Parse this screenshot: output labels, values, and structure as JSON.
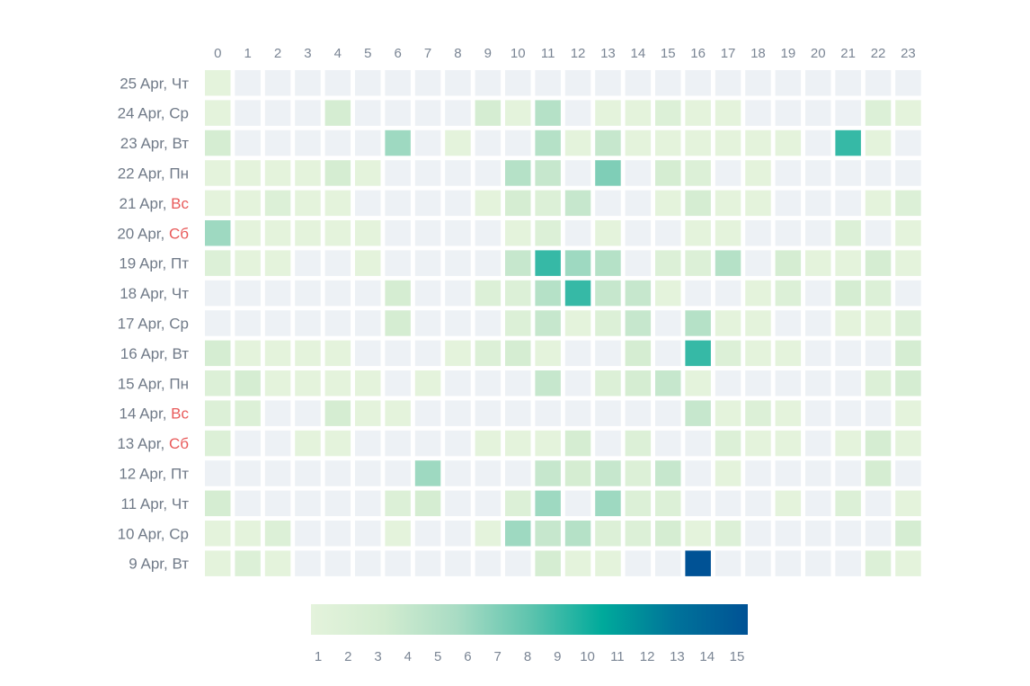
{
  "chart_data": {
    "type": "heatmap",
    "title": "",
    "xlabel": "",
    "ylabel": "",
    "x": [
      "0",
      "1",
      "2",
      "3",
      "4",
      "5",
      "6",
      "7",
      "8",
      "9",
      "10",
      "11",
      "12",
      "13",
      "14",
      "15",
      "16",
      "17",
      "18",
      "19",
      "20",
      "21",
      "22",
      "23"
    ],
    "rows": [
      {
        "date": "25 Apr,",
        "day": "Чт",
        "weekend": false
      },
      {
        "date": "24 Apr,",
        "day": "Ср",
        "weekend": false
      },
      {
        "date": "23 Apr,",
        "day": "Вт",
        "weekend": false
      },
      {
        "date": "22 Apr,",
        "day": "Пн",
        "weekend": false
      },
      {
        "date": "21 Apr,",
        "day": "Вс",
        "weekend": true
      },
      {
        "date": "20 Apr,",
        "day": "Сб",
        "weekend": true
      },
      {
        "date": "19 Apr,",
        "day": "Пт",
        "weekend": false
      },
      {
        "date": "18 Apr,",
        "day": "Чт",
        "weekend": false
      },
      {
        "date": "17 Apr,",
        "day": "Ср",
        "weekend": false
      },
      {
        "date": "16 Apr,",
        "day": "Вт",
        "weekend": false
      },
      {
        "date": "15 Apr,",
        "day": "Пн",
        "weekend": false
      },
      {
        "date": "14 Apr,",
        "day": "Вс",
        "weekend": true
      },
      {
        "date": "13 Apr,",
        "day": "Сб",
        "weekend": true
      },
      {
        "date": "12 Apr,",
        "day": "Пт",
        "weekend": false
      },
      {
        "date": "11 Apr,",
        "day": "Чт",
        "weekend": false
      },
      {
        "date": "10 Apr,",
        "day": "Ср",
        "weekend": false
      },
      {
        "date": "9 Apr,",
        "day": "Вт",
        "weekend": false
      }
    ],
    "values": [
      [
        1,
        0,
        0,
        0,
        0,
        0,
        0,
        0,
        0,
        0,
        0,
        0,
        0,
        0,
        0,
        0,
        0,
        0,
        0,
        0,
        0,
        0,
        0,
        0
      ],
      [
        1,
        0,
        0,
        0,
        3,
        0,
        0,
        0,
        0,
        3,
        1,
        5,
        0,
        1,
        1,
        2,
        1,
        1,
        0,
        0,
        0,
        0,
        2,
        1
      ],
      [
        3,
        0,
        0,
        0,
        0,
        0,
        6,
        0,
        1,
        0,
        0,
        5,
        1,
        4,
        1,
        1,
        1,
        1,
        1,
        1,
        0,
        9,
        1,
        0
      ],
      [
        1,
        1,
        1,
        1,
        3,
        1,
        0,
        0,
        0,
        0,
        5,
        4,
        0,
        7,
        0,
        3,
        2,
        0,
        1,
        0,
        0,
        0,
        0,
        0
      ],
      [
        1,
        1,
        2,
        1,
        1,
        0,
        0,
        0,
        0,
        1,
        3,
        2,
        4,
        0,
        0,
        1,
        3,
        1,
        1,
        0,
        0,
        0,
        1,
        2
      ],
      [
        6,
        1,
        1,
        1,
        1,
        1,
        0,
        0,
        0,
        0,
        1,
        2,
        0,
        1,
        0,
        0,
        1,
        1,
        0,
        0,
        0,
        2,
        0,
        1
      ],
      [
        2,
        1,
        1,
        0,
        0,
        1,
        0,
        0,
        0,
        0,
        4,
        9,
        6,
        5,
        0,
        2,
        2,
        5,
        0,
        3,
        1,
        1,
        3,
        1
      ],
      [
        0,
        0,
        0,
        0,
        0,
        0,
        3,
        0,
        0,
        2,
        2,
        5,
        9,
        4,
        4,
        1,
        0,
        0,
        1,
        2,
        0,
        3,
        2,
        0
      ],
      [
        0,
        0,
        0,
        0,
        0,
        0,
        3,
        0,
        0,
        0,
        2,
        4,
        1,
        2,
        4,
        0,
        5,
        1,
        1,
        0,
        0,
        1,
        1,
        2
      ],
      [
        3,
        1,
        1,
        1,
        1,
        0,
        0,
        0,
        1,
        2,
        3,
        1,
        0,
        0,
        3,
        0,
        9,
        2,
        1,
        1,
        0,
        0,
        0,
        3
      ],
      [
        2,
        3,
        1,
        1,
        1,
        1,
        0,
        1,
        0,
        0,
        0,
        4,
        0,
        2,
        3,
        4,
        1,
        0,
        0,
        0,
        0,
        0,
        2,
        3
      ],
      [
        2,
        2,
        0,
        0,
        3,
        1,
        1,
        0,
        0,
        0,
        0,
        0,
        0,
        0,
        0,
        0,
        4,
        1,
        2,
        1,
        0,
        0,
        0,
        1
      ],
      [
        2,
        0,
        0,
        1,
        1,
        0,
        0,
        0,
        0,
        1,
        1,
        1,
        3,
        0,
        2,
        0,
        0,
        2,
        1,
        1,
        0,
        1,
        3,
        1
      ],
      [
        0,
        0,
        0,
        0,
        0,
        0,
        0,
        6,
        0,
        0,
        0,
        4,
        3,
        4,
        2,
        4,
        0,
        1,
        0,
        0,
        0,
        0,
        3,
        0
      ],
      [
        3,
        0,
        0,
        0,
        0,
        0,
        2,
        3,
        0,
        0,
        2,
        6,
        0,
        6,
        2,
        2,
        0,
        0,
        0,
        1,
        0,
        2,
        0,
        1
      ],
      [
        1,
        1,
        2,
        0,
        0,
        0,
        1,
        0,
        0,
        1,
        6,
        4,
        5,
        2,
        2,
        3,
        1,
        2,
        0,
        0,
        0,
        0,
        0,
        3
      ],
      [
        1,
        2,
        1,
        0,
        0,
        0,
        0,
        0,
        0,
        0,
        0,
        3,
        1,
        1,
        0,
        0,
        15,
        0,
        0,
        0,
        0,
        0,
        2,
        1
      ]
    ],
    "legend": {
      "type": "colorbar",
      "placement": "bottom",
      "min": 1,
      "max": 15,
      "ticks": [
        "1",
        "2",
        "3",
        "4",
        "5",
        "6",
        "7",
        "8",
        "9",
        "10",
        "11",
        "12",
        "13",
        "14",
        "15"
      ]
    },
    "colors": {
      "empty": "#edf1f5",
      "stops": [
        "#e4f3dc",
        "#d2ecd0",
        "#a9dcc4",
        "#5fc4ae",
        "#00aa9b",
        "#00739a",
        "#005295"
      ]
    }
  }
}
